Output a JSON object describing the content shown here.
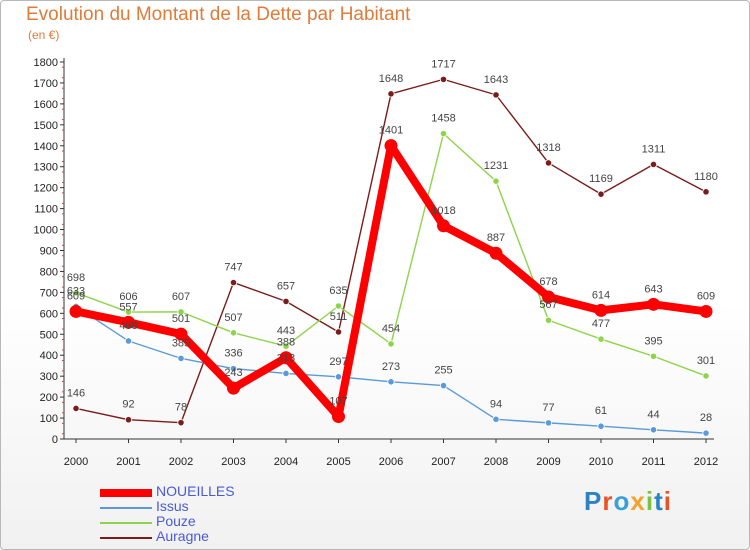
{
  "chart_data": {
    "type": "line",
    "title": "Evolution du Montant de la Dette par Habitant",
    "subtitle": "(en €)",
    "xlabel": "",
    "ylabel": "",
    "ylim": [
      0,
      1800
    ],
    "yticks": [
      0,
      100,
      200,
      300,
      400,
      500,
      600,
      700,
      800,
      900,
      1000,
      1100,
      1200,
      1300,
      1400,
      1500,
      1600,
      1700,
      1800
    ],
    "x": [
      "2000",
      "2001",
      "2002",
      "2003",
      "2004",
      "2005",
      "2006",
      "2007",
      "2008",
      "2009",
      "2010",
      "2011",
      "2012"
    ],
    "grid": false,
    "legend": "bottom-left",
    "series": [
      {
        "name": "Auragne",
        "color": "#7a1c1c",
        "width": 1.4,
        "values": [
          146,
          92,
          78,
          747,
          657,
          511,
          1648,
          1717,
          1643,
          1318,
          1169,
          1311,
          1180
        ]
      },
      {
        "name": "Pouze",
        "color": "#8ed44a",
        "width": 1.4,
        "values": [
          698,
          606,
          607,
          507,
          443,
          635,
          454,
          1458,
          1231,
          567,
          477,
          395,
          301
        ]
      },
      {
        "name": "Issus",
        "color": "#5a9ad8",
        "width": 1.4,
        "values": [
          633,
          468,
          385,
          336,
          313,
          297,
          273,
          255,
          94,
          77,
          61,
          44,
          28
        ]
      },
      {
        "name": "NOUEILLES",
        "color": "#ff0000",
        "width": 8,
        "values": [
          609,
          557,
          501,
          243,
          388,
          107,
          1401,
          1018,
          887,
          678,
          614,
          643,
          609
        ]
      }
    ]
  },
  "logo": {
    "text": "Proxiti"
  }
}
